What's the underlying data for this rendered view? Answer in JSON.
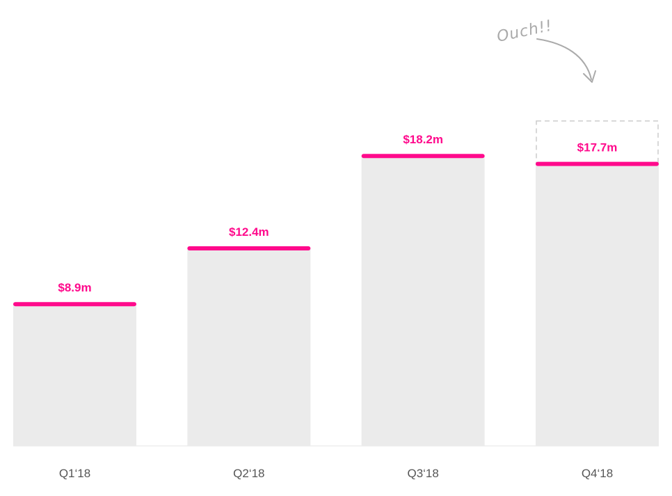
{
  "colors": {
    "accent": "#ff0a8c",
    "bar_fill": "#ebebeb",
    "ghost_outline": "#cccccc",
    "annotation": "#aaaaaa",
    "tick_text": "#555555",
    "baseline": "#e4e4e4"
  },
  "chart_data": {
    "type": "bar",
    "categories": [
      "Q1‘18",
      "Q2‘18",
      "Q3‘18",
      "Q4‘18"
    ],
    "values": [
      8.9,
      12.4,
      18.2,
      17.7
    ],
    "value_labels": [
      "$8.9m",
      "$12.4m",
      "$18.2m",
      "$17.7m"
    ],
    "ylim": [
      0,
      20
    ],
    "grid": false,
    "annotation": {
      "text": "Ouch!!",
      "category": "Q4‘18",
      "expected_value": 20.4
    }
  }
}
